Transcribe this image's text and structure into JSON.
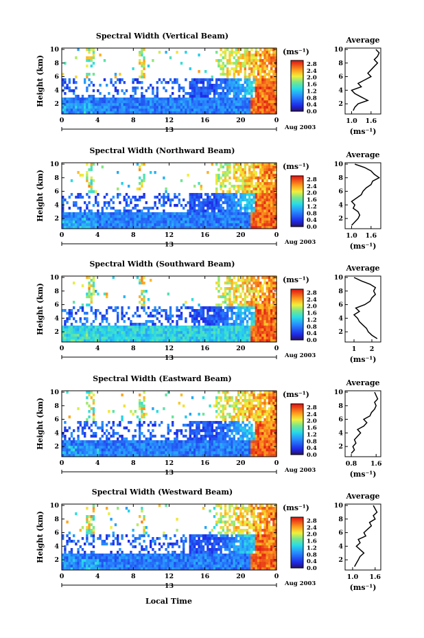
{
  "figure": {
    "day_label": "13",
    "date_label": "Aug 2003",
    "x_axis_title": "Local Time",
    "y_axis_title": "Height (km)",
    "colorbar_unit": "(ms⁻¹)",
    "colorbar_ticks": [
      "0.0",
      "0.4",
      "0.8",
      "1.2",
      "1.6",
      "2.0",
      "2.4",
      "2.8"
    ],
    "avg_title": "Average",
    "avg_unit": "(ms⁻¹)"
  },
  "chart_data": [
    {
      "type": "heatmap",
      "title": "Spectral Width (Vertical Beam)",
      "xlabel": "Local Time",
      "ylabel": "Height (km)",
      "xlim": [
        0,
        24
      ],
      "ylim": [
        0.5,
        10.2
      ],
      "x_ticks": [
        "0",
        "4",
        "8",
        "12",
        "16",
        "20",
        "0"
      ],
      "y_ticks": [
        "2",
        "4",
        "6",
        "8",
        "10"
      ],
      "color_range": [
        0,
        3.0
      ],
      "colorbar_unit": "ms-1"
    },
    {
      "type": "line",
      "title": "Average",
      "x_ticks": [
        "1.0",
        "1.6"
      ],
      "xlim": [
        0.8,
        1.9
      ],
      "ylim": [
        0.5,
        10.2
      ],
      "y_ticks": [
        "2",
        "4",
        "6",
        "8",
        "10"
      ],
      "xlabel": "(ms-1)",
      "profile": [
        [
          1.05,
          1
        ],
        [
          1.1,
          1.5
        ],
        [
          1.2,
          2
        ],
        [
          1.5,
          2.5
        ],
        [
          1.3,
          3
        ],
        [
          1.1,
          3.5
        ],
        [
          1.0,
          4
        ],
        [
          1.3,
          4.5
        ],
        [
          1.2,
          5
        ],
        [
          1.4,
          5.5
        ],
        [
          1.6,
          6
        ],
        [
          1.5,
          6.5
        ],
        [
          1.6,
          7
        ],
        [
          1.7,
          7.5
        ],
        [
          1.8,
          8
        ],
        [
          1.7,
          8.5
        ],
        [
          1.8,
          9
        ],
        [
          1.85,
          9.5
        ],
        [
          1.75,
          10
        ]
      ]
    },
    {
      "type": "heatmap",
      "title": "Spectral Width (Northward Beam)",
      "xlabel": "Local Time",
      "ylabel": "Height (km)",
      "xlim": [
        0,
        24
      ],
      "ylim": [
        0.5,
        10.2
      ],
      "x_ticks": [
        "0",
        "4",
        "8",
        "12",
        "16",
        "20",
        "0"
      ],
      "y_ticks": [
        "2",
        "4",
        "6",
        "8",
        "10"
      ],
      "color_range": [
        0,
        3.0
      ],
      "colorbar_unit": "ms-1"
    },
    {
      "type": "line",
      "title": "Average",
      "x_ticks": [
        "1.0",
        "1.6"
      ],
      "xlim": [
        0.8,
        1.9
      ],
      "ylim": [
        0.5,
        10.2
      ],
      "y_ticks": [
        "2",
        "4",
        "6",
        "8",
        "10"
      ],
      "xlabel": "(ms-1)",
      "profile": [
        [
          1.0,
          1
        ],
        [
          1.1,
          1.5
        ],
        [
          1.2,
          2
        ],
        [
          1.25,
          2.5
        ],
        [
          1.2,
          3
        ],
        [
          1.05,
          3.5
        ],
        [
          1.1,
          4
        ],
        [
          1.0,
          4.5
        ],
        [
          1.15,
          5
        ],
        [
          1.3,
          5.5
        ],
        [
          1.35,
          6
        ],
        [
          1.45,
          6.5
        ],
        [
          1.6,
          7
        ],
        [
          1.65,
          7.5
        ],
        [
          1.85,
          8
        ],
        [
          1.7,
          8.5
        ],
        [
          1.6,
          9
        ],
        [
          1.4,
          9.5
        ],
        [
          1.1,
          10
        ]
      ]
    },
    {
      "type": "heatmap",
      "title": "Spectral Width (Southward Beam)",
      "xlabel": "Local Time",
      "ylabel": "Height (km)",
      "xlim": [
        0,
        24
      ],
      "ylim": [
        0.5,
        10.2
      ],
      "x_ticks": [
        "0",
        "4",
        "8",
        "12",
        "16",
        "20",
        "0"
      ],
      "y_ticks": [
        "2",
        "4",
        "6",
        "8",
        "10"
      ],
      "color_range": [
        0,
        3.0
      ],
      "colorbar_unit": "ms-1"
    },
    {
      "type": "line",
      "title": "Average",
      "x_ticks": [
        "1",
        "2"
      ],
      "xlim": [
        0.5,
        2.5
      ],
      "ylim": [
        0.5,
        10.2
      ],
      "y_ticks": [
        "2",
        "4",
        "6",
        "8",
        "10"
      ],
      "xlabel": "(ms-1)",
      "profile": [
        [
          2.3,
          1
        ],
        [
          2.0,
          1.5
        ],
        [
          1.8,
          2
        ],
        [
          1.7,
          2.5
        ],
        [
          1.5,
          3
        ],
        [
          1.3,
          3.5
        ],
        [
          1.2,
          4
        ],
        [
          1.0,
          4.5
        ],
        [
          1.3,
          5
        ],
        [
          1.1,
          5.5
        ],
        [
          1.6,
          6
        ],
        [
          1.9,
          6.5
        ],
        [
          2.0,
          7
        ],
        [
          2.2,
          7.5
        ],
        [
          2.1,
          8
        ],
        [
          2.2,
          8.5
        ],
        [
          1.9,
          9
        ],
        [
          1.4,
          9.5
        ],
        [
          1.0,
          10
        ]
      ]
    },
    {
      "type": "heatmap",
      "title": "Spectral Width (Eastward Beam)",
      "xlabel": "Local Time",
      "ylabel": "Height (km)",
      "xlim": [
        0,
        24
      ],
      "ylim": [
        0.5,
        10.2
      ],
      "x_ticks": [
        "0",
        "4",
        "8",
        "12",
        "16",
        "20",
        "0"
      ],
      "y_ticks": [
        "2",
        "4",
        "6",
        "8",
        "10"
      ],
      "color_range": [
        0,
        3.0
      ],
      "colorbar_unit": "ms-1"
    },
    {
      "type": "line",
      "title": "Average",
      "x_ticks": [
        "0.8",
        "1.6"
      ],
      "xlim": [
        0.6,
        1.75
      ],
      "ylim": [
        0.5,
        10.2
      ],
      "y_ticks": [
        "2",
        "4",
        "6",
        "8",
        "10"
      ],
      "xlabel": "(ms-1)",
      "profile": [
        [
          0.8,
          1
        ],
        [
          0.9,
          1.5
        ],
        [
          0.85,
          2
        ],
        [
          0.95,
          2.5
        ],
        [
          0.9,
          3
        ],
        [
          1.0,
          3.5
        ],
        [
          1.1,
          4
        ],
        [
          1.0,
          4.5
        ],
        [
          1.2,
          5
        ],
        [
          1.3,
          5.5
        ],
        [
          1.2,
          6
        ],
        [
          1.4,
          6.5
        ],
        [
          1.45,
          7
        ],
        [
          1.55,
          7.5
        ],
        [
          1.6,
          8
        ],
        [
          1.55,
          8.5
        ],
        [
          1.65,
          9
        ],
        [
          1.6,
          9.5
        ],
        [
          1.55,
          10
        ]
      ]
    },
    {
      "type": "heatmap",
      "title": "Spectral Width (Westward Beam)",
      "xlabel": "Local Time",
      "ylabel": "Height (km)",
      "xlim": [
        0,
        24
      ],
      "ylim": [
        0.5,
        10.2
      ],
      "x_ticks": [
        "0",
        "4",
        "8",
        "12",
        "16",
        "20",
        "0"
      ],
      "y_ticks": [
        "2",
        "4",
        "6",
        "8",
        "10"
      ],
      "color_range": [
        0,
        3.0
      ],
      "colorbar_unit": "ms-1"
    },
    {
      "type": "line",
      "title": "Average",
      "x_ticks": [
        "1.0",
        "1.6"
      ],
      "xlim": [
        0.8,
        1.75
      ],
      "ylim": [
        0.5,
        10.2
      ],
      "y_ticks": [
        "2",
        "4",
        "6",
        "8",
        "10"
      ],
      "xlabel": "(ms-1)",
      "profile": [
        [
          1.05,
          1
        ],
        [
          1.1,
          1.5
        ],
        [
          1.15,
          2
        ],
        [
          1.2,
          2.5
        ],
        [
          1.3,
          3
        ],
        [
          1.2,
          3.5
        ],
        [
          1.1,
          4
        ],
        [
          1.2,
          4.5
        ],
        [
          1.15,
          5
        ],
        [
          1.35,
          5.5
        ],
        [
          1.3,
          6
        ],
        [
          1.4,
          6.5
        ],
        [
          1.5,
          7
        ],
        [
          1.45,
          7.5
        ],
        [
          1.6,
          8
        ],
        [
          1.55,
          8.5
        ],
        [
          1.65,
          9
        ],
        [
          1.6,
          9.5
        ],
        [
          1.55,
          10
        ]
      ]
    }
  ]
}
